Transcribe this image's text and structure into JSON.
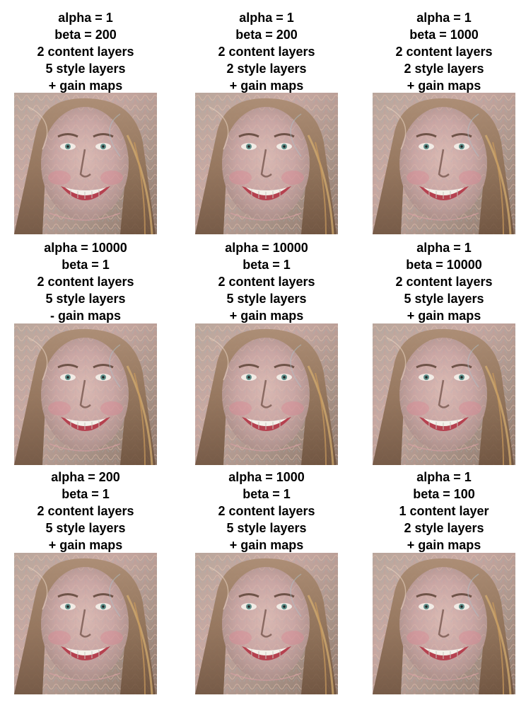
{
  "figure": {
    "panels": [
      {
        "lines": [
          "alpha = 1",
          "beta = 200",
          "2 content layers",
          "5 style layers",
          "+ gain maps"
        ],
        "image": "stylized-face-portrait"
      },
      {
        "lines": [
          "alpha = 1",
          "beta = 200",
          "2 content layers",
          "2 style layers",
          "+ gain maps"
        ],
        "image": "stylized-face-portrait"
      },
      {
        "lines": [
          "alpha = 1",
          "beta = 1000",
          "2 content layers",
          "2 style layers",
          "+ gain maps"
        ],
        "image": "stylized-face-portrait"
      },
      {
        "lines": [
          "alpha = 10000",
          "beta = 1",
          "2 content layers",
          "5 style layers",
          "- gain maps"
        ],
        "image": "stylized-face-portrait"
      },
      {
        "lines": [
          "alpha = 10000",
          "beta = 1",
          "2 content layers",
          "5 style layers",
          "+ gain maps"
        ],
        "image": "stylized-face-portrait"
      },
      {
        "lines": [
          "alpha = 1",
          "beta = 10000",
          "2 content layers",
          "5 style layers",
          "+ gain maps"
        ],
        "image": "stylized-face-portrait"
      },
      {
        "lines": [
          "alpha = 200",
          "beta = 1",
          "2 content layers",
          "5 style layers",
          "+ gain maps"
        ],
        "image": "stylized-face-portrait"
      },
      {
        "lines": [
          "alpha = 1000",
          "beta = 1",
          "2 content layers",
          "5 style layers",
          "+ gain maps"
        ],
        "image": "stylized-face-portrait"
      },
      {
        "lines": [
          "alpha = 1",
          "beta = 100",
          "1 content layer",
          "2 style layers",
          "+ gain maps"
        ],
        "image": "stylized-face-portrait"
      }
    ]
  }
}
